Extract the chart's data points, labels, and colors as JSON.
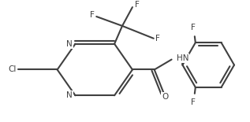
{
  "bg": "#ffffff",
  "lc": "#404040",
  "tc": "#404040",
  "lw": 1.5,
  "fs": 7.5,
  "fig_w": 3.17,
  "fig_h": 1.55,
  "dpi": 100,
  "xlim": [
    0,
    317
  ],
  "ylim": [
    0,
    155
  ]
}
